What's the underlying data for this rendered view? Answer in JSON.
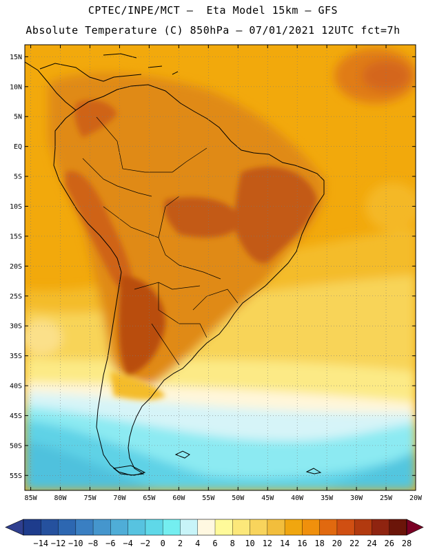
{
  "header": {
    "title_line1": "CPTEC/INPE/MCT –  Eta Model 15km – GFS",
    "title_line2": "Absolute Temperature (C) 850hPa – 07/01/2021 12UTC fct=7h"
  },
  "map": {
    "lat_labels": [
      "15N",
      "10N",
      "5N",
      "EQ",
      "5S",
      "10S",
      "15S",
      "20S",
      "25S",
      "30S",
      "35S",
      "40S",
      "45S",
      "50S",
      "55S"
    ],
    "lon_labels": [
      "85W",
      "80W",
      "75W",
      "70W",
      "65W",
      "60W",
      "55W",
      "50W",
      "45W",
      "40W",
      "35W",
      "30W",
      "25W",
      "20W"
    ],
    "field_colors": {
      "ocean_background": "#f5ad0c",
      "warm_continent": "#e08a14",
      "hot_core": "#c35a12",
      "coastline": "#000000",
      "grid_line": "#888888"
    }
  },
  "colorbar": {
    "labels": [
      "-14",
      "-12",
      "-10",
      "-8",
      "-6",
      "-4",
      "-2",
      "0",
      "2",
      "4",
      "6",
      "8",
      "10",
      "12",
      "14",
      "16",
      "18",
      "20",
      "22",
      "24",
      "26",
      "28"
    ],
    "colors": [
      "#1e3c8c",
      "#25519e",
      "#2d67b1",
      "#3a7fc2",
      "#4596cd",
      "#4fadd7",
      "#57c3e0",
      "#5fd8e8",
      "#74eef0",
      "#c8f4f8",
      "#fff8e1",
      "#fffa9a",
      "#fce87a",
      "#f8d45c",
      "#f2be3c",
      "#f0a60f",
      "#f0900c",
      "#e1690f",
      "#d04f12",
      "#b23a0f",
      "#8f2410",
      "#6b1509"
    ],
    "low_color": "#2f3f8f",
    "high_color": "#7a0024"
  }
}
